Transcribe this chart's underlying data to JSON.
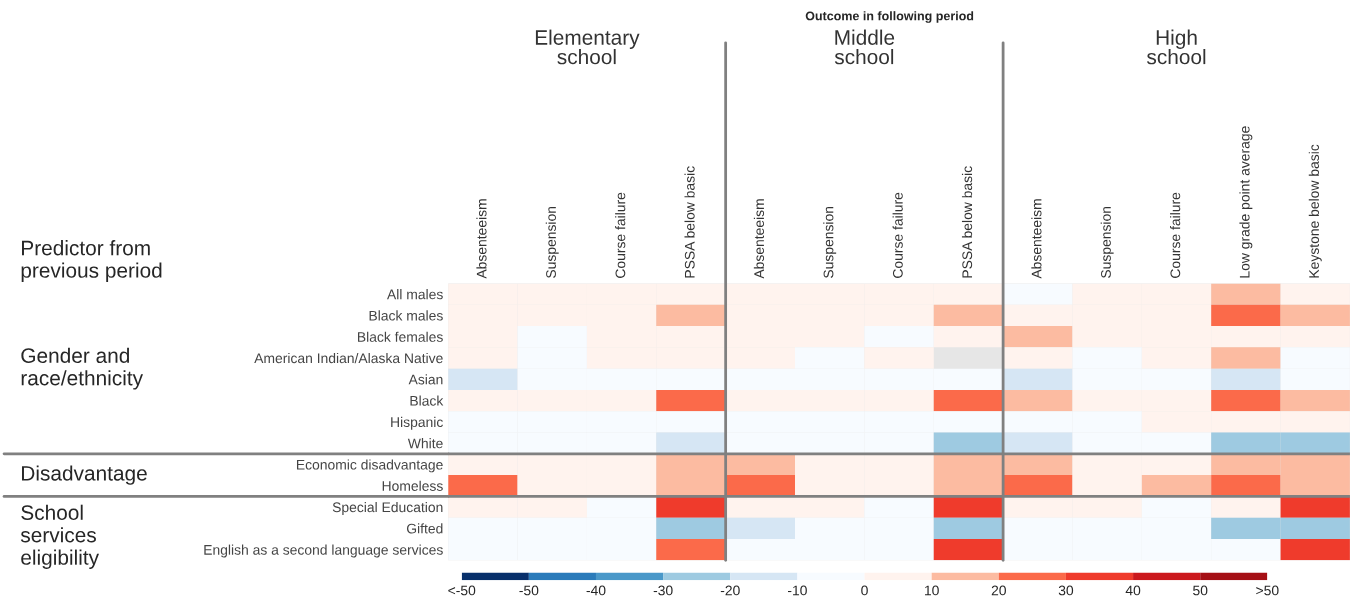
{
  "chart_data": {
    "type": "heatmap",
    "title": "Outcome in following period",
    "categories": [
      "Absenteeism",
      "Suspension",
      "Course failure",
      "PSSA below basic",
      "Absenteeism",
      "Suspension",
      "Course failure",
      "PSSA below basic",
      "Absenteeism",
      "Suspension",
      "Course failure",
      "Low grade point average",
      "Keystone below basic"
    ],
    "y_categories": [
      "All males",
      "Black males",
      "Black females",
      "American Indian/Alaska Native",
      "Asian",
      "Black",
      "Hispanic",
      "White",
      "Economic disadvantage",
      "Homeless",
      "Special Education",
      "Gifted",
      "English as a second language services"
    ],
    "cells": [
      [
        5,
        5,
        5,
        5,
        5,
        5,
        5,
        5,
        -5,
        5,
        5,
        15,
        5
      ],
      [
        5,
        5,
        5,
        15,
        5,
        5,
        5,
        15,
        5,
        5,
        5,
        25,
        15
      ],
      [
        5,
        -5,
        5,
        5,
        5,
        5,
        -5,
        5,
        15,
        5,
        5,
        5,
        5
      ],
      [
        5,
        -5,
        5,
        5,
        5,
        -5,
        5,
        null,
        5,
        -5,
        5,
        15,
        -5
      ],
      [
        -15,
        -5,
        -5,
        -5,
        -5,
        -5,
        -5,
        -5,
        -15,
        -5,
        -5,
        -15,
        -5
      ],
      [
        5,
        5,
        5,
        25,
        5,
        5,
        5,
        25,
        15,
        5,
        5,
        25,
        15
      ],
      [
        -5,
        -5,
        -5,
        -5,
        -5,
        -5,
        -5,
        -5,
        -5,
        -5,
        5,
        5,
        5
      ],
      [
        -5,
        -5,
        -5,
        -15,
        -5,
        -5,
        -5,
        -25,
        -15,
        -5,
        -5,
        -25,
        -25
      ],
      [
        5,
        5,
        5,
        15,
        15,
        5,
        5,
        15,
        15,
        5,
        5,
        15,
        15
      ],
      [
        25,
        5,
        5,
        15,
        25,
        5,
        5,
        15,
        25,
        5,
        15,
        25,
        15
      ],
      [
        5,
        5,
        -5,
        35,
        5,
        5,
        -5,
        35,
        5,
        5,
        -5,
        5,
        35
      ],
      [
        -5,
        -5,
        -5,
        -25,
        -15,
        -5,
        -5,
        -25,
        -5,
        -5,
        -5,
        -25,
        -25
      ],
      [
        -5,
        -5,
        -5,
        25,
        -5,
        -5,
        -5,
        35,
        -5,
        -5,
        -5,
        -5,
        35
      ]
    ],
    "clim": [
      -60,
      60
    ],
    "cticks": [
      {
        "value": -60,
        "label": "<-50"
      },
      -50,
      -40,
      -30,
      -20,
      -10,
      0,
      10,
      20,
      30,
      40,
      50,
      {
        "value": 60,
        "label": ">50"
      }
    ],
    "annotations": [
      "Elementary\nschool",
      "Middle\nschool",
      "High\nschool",
      "Predictor from\nprevious period",
      "Gender and\nrace/ethnicity",
      "Disadvantage",
      "School\nservices\neligibility"
    ]
  }
}
